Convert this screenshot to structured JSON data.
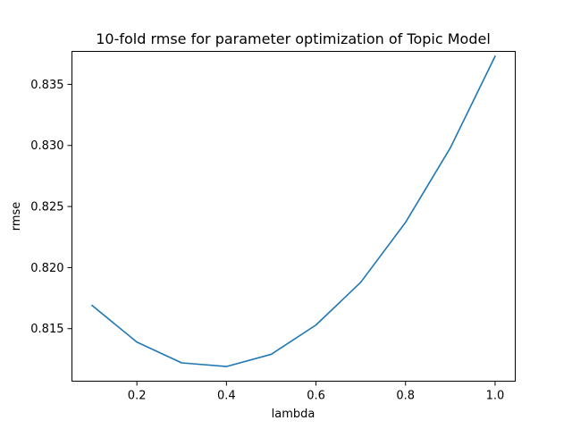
{
  "chart_data": {
    "type": "line",
    "title": "10-fold rmse for parameter optimization of Topic Model",
    "xlabel": "lambda",
    "ylabel": "rmse",
    "xlim": [
      0.055,
      1.045
    ],
    "ylim": [
      0.8107,
      0.8377
    ],
    "xticks": [
      0.2,
      0.4,
      0.6,
      0.8,
      1.0
    ],
    "xtick_labels": [
      "0.2",
      "0.4",
      "0.6",
      "0.8",
      "1.0"
    ],
    "yticks": [
      0.815,
      0.82,
      0.825,
      0.83,
      0.835
    ],
    "ytick_labels": [
      "0.815",
      "0.820",
      "0.825",
      "0.830",
      "0.835"
    ],
    "grid": false,
    "series": [
      {
        "name": "rmse",
        "color": "#1f77b4",
        "x": [
          0.1,
          0.2,
          0.3,
          0.4,
          0.5,
          0.6,
          0.7,
          0.8,
          0.9,
          1.0
        ],
        "y": [
          0.8169,
          0.8139,
          0.8122,
          0.8119,
          0.8129,
          0.8153,
          0.8188,
          0.8237,
          0.8298,
          0.8373
        ]
      }
    ]
  }
}
